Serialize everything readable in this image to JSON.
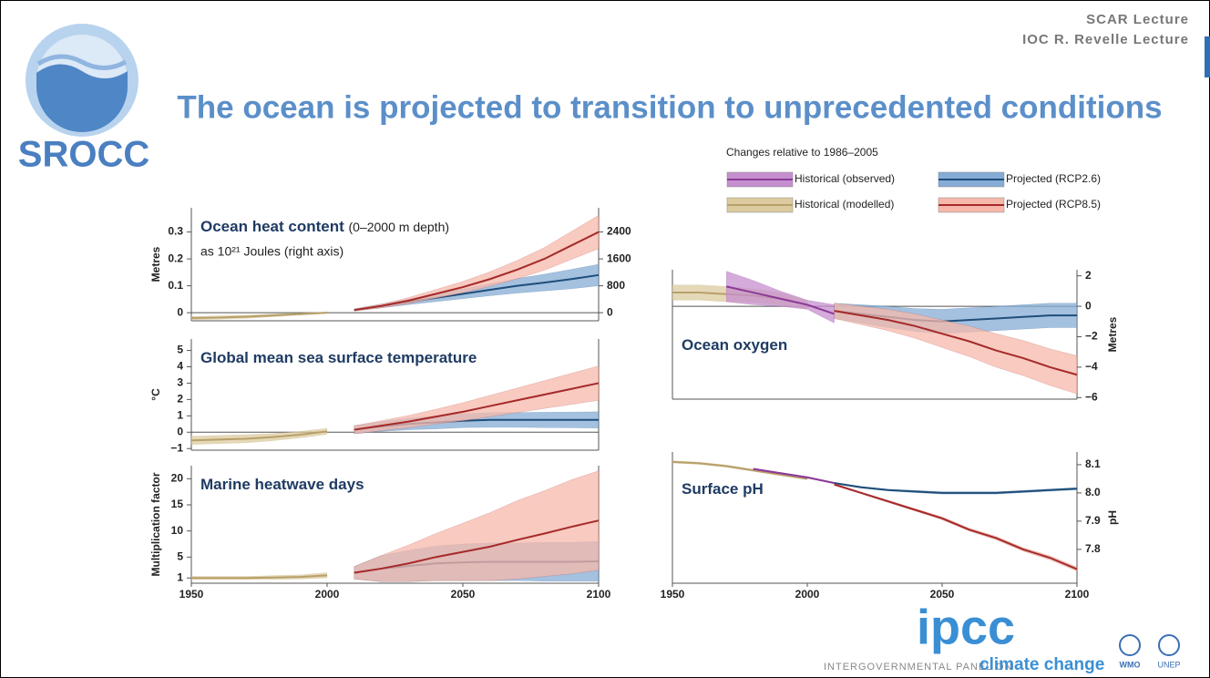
{
  "header": {
    "lecture_1": "SCAR Lecture",
    "lecture_2": "IOC R. Revelle Lecture",
    "title": "The ocean is projected to transition to unprecedented conditions",
    "logo_text": "SROCC"
  },
  "legend": {
    "title": "Changes relative to 1986–2005",
    "items": [
      {
        "name": "Historical (observed)",
        "color": "#8b3a96",
        "band_color": "#c58fcf"
      },
      {
        "name": "Historical (modelled)",
        "color": "#b8a06a",
        "band_color": "#dccb9f"
      },
      {
        "name": "Projected (RCP2.6)",
        "color": "#1f4e79",
        "band_color": "#86acd6"
      },
      {
        "name": "Projected (RCP8.5)",
        "color": "#a52a2a",
        "band_color": "#f6b8ab"
      }
    ]
  },
  "chart_data": [
    {
      "type": "line",
      "title": "Ocean heat content",
      "title_note": "(0–2000 m depth)",
      "title_note_2": "as 10²¹ Joules (right axis)",
      "ylabel": "Metres",
      "x": [
        1950,
        1960,
        1970,
        1980,
        1990,
        2000,
        2010,
        2020,
        2030,
        2040,
        2050,
        2060,
        2070,
        2080,
        2090,
        2100
      ],
      "xlim": [
        1950,
        2100
      ],
      "ylim": [
        -0.03,
        0.39
      ],
      "yticks": [
        0,
        0.1,
        0.2,
        0.3
      ],
      "y2lim": [
        -240,
        3120
      ],
      "y2ticks": [
        0,
        800,
        1600,
        2400
      ],
      "zero_line": true,
      "series": [
        {
          "name": "Historical (modelled)",
          "values": [
            -0.02,
            -0.018,
            -0.015,
            -0.01,
            -0.005,
            0,
            null,
            null,
            null,
            null,
            null,
            null,
            null,
            null,
            null,
            null
          ],
          "spread": [
            0.006,
            0.006,
            0.006,
            0.005,
            0.004,
            0.003,
            null,
            null,
            null,
            null,
            null,
            null,
            null,
            null,
            null,
            null
          ]
        },
        {
          "name": "Projected (RCP2.6)",
          "values": [
            null,
            null,
            null,
            null,
            null,
            null,
            0.01,
            0.025,
            0.04,
            0.055,
            0.07,
            0.085,
            0.1,
            0.112,
            0.125,
            0.14
          ],
          "spread": [
            null,
            null,
            null,
            null,
            null,
            null,
            0.004,
            0.007,
            0.01,
            0.014,
            0.018,
            0.022,
            0.027,
            0.031,
            0.036,
            0.04
          ]
        },
        {
          "name": "Projected (RCP8.5)",
          "values": [
            null,
            null,
            null,
            null,
            null,
            null,
            0.01,
            0.025,
            0.045,
            0.07,
            0.095,
            0.125,
            0.16,
            0.2,
            0.25,
            0.3
          ],
          "spread": [
            null,
            null,
            null,
            null,
            null,
            null,
            0.004,
            0.007,
            0.011,
            0.016,
            0.021,
            0.027,
            0.034,
            0.042,
            0.052,
            0.062
          ]
        }
      ]
    },
    {
      "type": "line",
      "title": "Global mean sea surface temperature",
      "ylabel": "°C",
      "x": [
        1950,
        1960,
        1970,
        1980,
        1990,
        2000,
        2010,
        2020,
        2030,
        2040,
        2050,
        2060,
        2070,
        2080,
        2090,
        2100
      ],
      "xlim": [
        1950,
        2100
      ],
      "ylim": [
        -1.1,
        5.7
      ],
      "yticks": [
        {
          "value": -1,
          "label": "−1"
        },
        0,
        1,
        2,
        3,
        4,
        5
      ],
      "zero_line": true,
      "series": [
        {
          "name": "Historical (modelled)",
          "values": [
            -0.5,
            -0.45,
            -0.4,
            -0.3,
            -0.15,
            0.05,
            null,
            null,
            null,
            null,
            null,
            null,
            null,
            null,
            null,
            null
          ],
          "spread": [
            0.25,
            0.25,
            0.25,
            0.22,
            0.2,
            0.18,
            null,
            null,
            null,
            null,
            null,
            null,
            null,
            null,
            null,
            null
          ]
        },
        {
          "name": "Projected (RCP2.6)",
          "values": [
            null,
            null,
            null,
            null,
            null,
            null,
            0.15,
            0.35,
            0.5,
            0.6,
            0.7,
            0.75,
            0.75,
            0.75,
            0.75,
            0.75
          ],
          "spread": [
            null,
            null,
            null,
            null,
            null,
            null,
            0.25,
            0.3,
            0.35,
            0.4,
            0.42,
            0.45,
            0.45,
            0.47,
            0.48,
            0.5
          ]
        },
        {
          "name": "Projected (RCP8.5)",
          "values": [
            null,
            null,
            null,
            null,
            null,
            null,
            0.15,
            0.4,
            0.65,
            0.95,
            1.25,
            1.6,
            1.95,
            2.3,
            2.65,
            3.0
          ],
          "spread": [
            null,
            null,
            null,
            null,
            null,
            null,
            0.25,
            0.3,
            0.37,
            0.45,
            0.55,
            0.65,
            0.75,
            0.85,
            0.95,
            1.05
          ]
        }
      ]
    },
    {
      "type": "line",
      "title": "Marine heatwave days",
      "ylabel": "Multiplication factor",
      "x": [
        1950,
        1960,
        1970,
        1980,
        1990,
        2000,
        2010,
        2020,
        2030,
        2040,
        2050,
        2060,
        2070,
        2080,
        2090,
        2100
      ],
      "xlim": [
        1950,
        2100
      ],
      "ylim": [
        0,
        22.5
      ],
      "yticks": [
        1,
        5,
        10,
        15,
        20
      ],
      "xticks": [
        1950,
        2000,
        2050,
        2100
      ],
      "series": [
        {
          "name": "Historical (modelled)",
          "values": [
            1,
            1,
            1,
            1.1,
            1.2,
            1.5,
            null,
            null,
            null,
            null,
            null,
            null,
            null,
            null,
            null,
            null
          ],
          "spread": [
            0.3,
            0.3,
            0.3,
            0.35,
            0.4,
            0.5,
            null,
            null,
            null,
            null,
            null,
            null,
            null,
            null,
            null,
            null
          ]
        },
        {
          "name": "Projected (RCP2.6)",
          "values": [
            null,
            null,
            null,
            null,
            null,
            null,
            2,
            2.8,
            3.3,
            3.8,
            4,
            4.1,
            4.1,
            4.1,
            4.1,
            4.2
          ],
          "spread": [
            null,
            null,
            null,
            null,
            null,
            null,
            1.2,
            2.5,
            3,
            3.3,
            3.5,
            3.6,
            3.6,
            3.7,
            3.7,
            3.8
          ]
        },
        {
          "name": "Projected (RCP8.5)",
          "values": [
            null,
            null,
            null,
            null,
            null,
            null,
            2,
            2.8,
            3.8,
            5,
            6,
            7,
            8.3,
            9.5,
            10.8,
            12
          ],
          "spread": [
            null,
            null,
            null,
            null,
            null,
            null,
            1.2,
            2.5,
            3.5,
            4.5,
            5.5,
            6.5,
            7.5,
            8.2,
            9,
            9.5
          ]
        }
      ]
    },
    {
      "type": "line",
      "title": "Ocean oxygen",
      "ylabel": "Metres",
      "x": [
        1950,
        1960,
        1970,
        1980,
        1990,
        2000,
        2010,
        2020,
        2030,
        2040,
        2050,
        2060,
        2070,
        2080,
        2090,
        2100
      ],
      "xlim": [
        1950,
        2100
      ],
      "ylim": [
        -6.1,
        2.4
      ],
      "yticks": [
        2,
        0,
        {
          "value": -2,
          "label": "−2"
        },
        {
          "value": -4,
          "label": "−4"
        },
        {
          "value": -6,
          "label": "−6"
        }
      ],
      "zero_line": true,
      "series": [
        {
          "name": "Historical (modelled)",
          "values": [
            0.9,
            0.9,
            0.8,
            0.7,
            0.5,
            0.1,
            null,
            null,
            null,
            null,
            null,
            null,
            null,
            null,
            null,
            null
          ],
          "spread": [
            0.5,
            0.5,
            0.5,
            0.45,
            0.4,
            0.3,
            null,
            null,
            null,
            null,
            null,
            null,
            null,
            null,
            null,
            null
          ]
        },
        {
          "name": "Historical (observed)",
          "values": [
            null,
            null,
            1.3,
            0.9,
            0.5,
            0.1,
            -0.5,
            null,
            null,
            null,
            null,
            null,
            null,
            null,
            null,
            null
          ],
          "spread": [
            null,
            null,
            1.0,
            0.8,
            0.5,
            0.3,
            0.6,
            null,
            null,
            null,
            null,
            null,
            null,
            null,
            null,
            null
          ]
        },
        {
          "name": "Projected (RCP2.6)",
          "values": [
            null,
            null,
            null,
            null,
            null,
            null,
            -0.3,
            -0.5,
            -0.7,
            -0.9,
            -1.0,
            -0.9,
            -0.8,
            -0.7,
            -0.6,
            -0.6
          ],
          "spread": [
            null,
            null,
            null,
            null,
            null,
            null,
            0.5,
            0.6,
            0.7,
            0.75,
            0.8,
            0.8,
            0.8,
            0.8,
            0.8,
            0.8
          ]
        },
        {
          "name": "Projected (RCP8.5)",
          "values": [
            null,
            null,
            null,
            null,
            null,
            null,
            -0.3,
            -0.6,
            -0.9,
            -1.3,
            -1.8,
            -2.3,
            -2.9,
            -3.4,
            -4.0,
            -4.5
          ],
          "spread": [
            null,
            null,
            null,
            null,
            null,
            null,
            0.5,
            0.6,
            0.7,
            0.8,
            0.9,
            1.0,
            1.1,
            1.15,
            1.2,
            1.25
          ]
        }
      ]
    },
    {
      "type": "line",
      "title": "Surface pH",
      "ylabel": "pH",
      "x": [
        1950,
        1960,
        1970,
        1980,
        1990,
        2000,
        2010,
        2020,
        2030,
        2040,
        2050,
        2060,
        2070,
        2080,
        2090,
        2100
      ],
      "xlim": [
        1950,
        2100
      ],
      "ylim": [
        7.68,
        8.145
      ],
      "yticks": [
        {
          "value": 7.8,
          "label": "7.8"
        },
        {
          "value": 7.9,
          "label": "7.9"
        },
        {
          "value": 8,
          "label": "8.0"
        },
        {
          "value": 8.1,
          "label": "8.1"
        }
      ],
      "xticks": [
        1950,
        2000,
        2050,
        2100
      ],
      "series": [
        {
          "name": "Historical (modelled)",
          "values": [
            8.11,
            8.105,
            8.095,
            8.08,
            8.065,
            8.05,
            null,
            null,
            null,
            null,
            null,
            null,
            null,
            null,
            null,
            null
          ],
          "spread": [
            0.004,
            0.004,
            0.004,
            0.004,
            0.004,
            0.004,
            null,
            null,
            null,
            null,
            null,
            null,
            null,
            null,
            null,
            null
          ]
        },
        {
          "name": "Historical (observed)",
          "values": [
            null,
            null,
            null,
            8.085,
            8.07,
            8.055,
            8.035,
            null,
            null,
            null,
            null,
            null,
            null,
            null,
            null,
            null
          ],
          "spread": [
            null,
            null,
            null,
            0.003,
            0.003,
            0.003,
            0.003,
            null,
            null,
            null,
            null,
            null,
            null,
            null,
            null,
            null
          ]
        },
        {
          "name": "Projected (RCP2.6)",
          "values": [
            null,
            null,
            null,
            null,
            null,
            null,
            8.035,
            8.02,
            8.01,
            8.005,
            8.0,
            8.0,
            8.0,
            8.005,
            8.01,
            8.015
          ],
          "spread": [
            null,
            null,
            null,
            null,
            null,
            null,
            0.003,
            0.003,
            0.003,
            0.004,
            0.004,
            0.004,
            0.004,
            0.004,
            0.004,
            0.004
          ]
        },
        {
          "name": "Projected (RCP8.5)",
          "values": [
            null,
            null,
            null,
            null,
            null,
            null,
            8.03,
            8.0,
            7.97,
            7.94,
            7.91,
            7.87,
            7.84,
            7.8,
            7.77,
            7.73
          ],
          "spread": [
            null,
            null,
            null,
            null,
            null,
            null,
            0.003,
            0.003,
            0.004,
            0.004,
            0.005,
            0.005,
            0.006,
            0.006,
            0.007,
            0.007
          ]
        }
      ]
    }
  ],
  "footer": {
    "ipcc": "ipcc",
    "panel": "INTERGOVERNMENTAL PANEL ON",
    "climate": "climate change",
    "wmo": "WMO",
    "unep": "UNEP"
  }
}
